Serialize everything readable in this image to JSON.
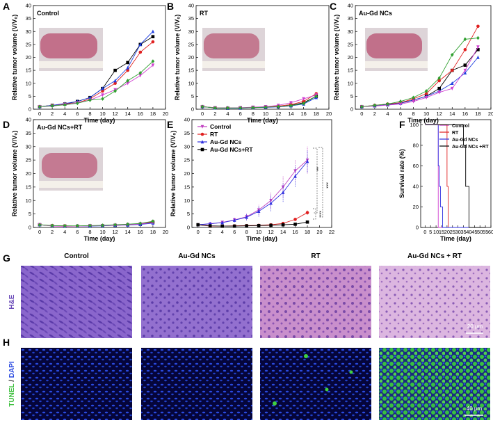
{
  "chart_data": [
    {
      "type": "line",
      "panel": "A",
      "title": "Control",
      "x": [
        0,
        2,
        4,
        6,
        8,
        10,
        12,
        14,
        16,
        18
      ],
      "series": [
        {
          "color": "#000000",
          "marker": "square",
          "values": [
            1,
            1.5,
            2,
            3,
            4.5,
            8,
            15,
            18,
            25,
            28
          ]
        },
        {
          "color": "#e02020",
          "marker": "circle",
          "values": [
            1,
            1.5,
            2,
            2.5,
            4,
            7,
            10,
            15,
            22,
            26
          ]
        },
        {
          "color": "#2040e0",
          "marker": "triangle",
          "values": [
            1,
            1.5,
            2.2,
            3,
            4.5,
            8,
            11,
            16,
            25,
            30
          ]
        },
        {
          "color": "#d040d0",
          "marker": "triangle-down",
          "values": [
            1,
            1.2,
            1.8,
            2.5,
            3.5,
            5.5,
            7.5,
            10,
            13,
            17
          ]
        },
        {
          "color": "#30a030",
          "marker": "diamond",
          "values": [
            1,
            1.3,
            1.7,
            2.3,
            3.5,
            4,
            7,
            11,
            14,
            18.5
          ]
        }
      ],
      "xlim": [
        -1,
        20
      ],
      "ylim": [
        0,
        40
      ],
      "xticks": [
        0,
        2,
        4,
        6,
        8,
        10,
        12,
        14,
        16,
        18,
        20
      ],
      "yticks": [
        0,
        5,
        10,
        15,
        20,
        25,
        30,
        35,
        40
      ],
      "xlabel": "Time (day)",
      "ylabel": "Relative tumor volume (V/V₀)"
    },
    {
      "type": "line",
      "panel": "B",
      "title": "RT",
      "x": [
        0,
        2,
        4,
        6,
        8,
        10,
        12,
        14,
        16,
        18
      ],
      "series": [
        {
          "color": "#000000",
          "marker": "square",
          "values": [
            1,
            0.5,
            0.4,
            0.5,
            0.6,
            0.8,
            1,
            1.5,
            2.5,
            5
          ]
        },
        {
          "color": "#e02020",
          "marker": "circle",
          "values": [
            1,
            0.6,
            0.5,
            0.5,
            0.7,
            0.9,
            1.2,
            1.8,
            3,
            6
          ]
        },
        {
          "color": "#2040e0",
          "marker": "triangle",
          "values": [
            1,
            0.5,
            0.4,
            0.4,
            0.6,
            0.7,
            0.9,
            1.3,
            2,
            4.5
          ]
        },
        {
          "color": "#d040d0",
          "marker": "triangle-down",
          "values": [
            1,
            0.6,
            0.5,
            0.6,
            0.8,
            1,
            1.5,
            2.5,
            4,
            5.5
          ]
        },
        {
          "color": "#30a030",
          "marker": "diamond",
          "values": [
            1,
            0.5,
            0.5,
            0.5,
            0.6,
            0.8,
            1,
            1.4,
            2.2,
            5
          ]
        }
      ],
      "xlim": [
        -1,
        20
      ],
      "ylim": [
        0,
        40
      ],
      "xticks": [
        0,
        2,
        4,
        6,
        8,
        10,
        12,
        14,
        16,
        18,
        20
      ],
      "yticks": [
        0,
        5,
        10,
        15,
        20,
        25,
        30,
        35,
        40
      ],
      "xlabel": "Time (day)",
      "ylabel": "Relative tumor volume (V/V₀)"
    },
    {
      "type": "line",
      "panel": "C",
      "title": "Au-Gd NCs",
      "x": [
        0,
        2,
        4,
        6,
        8,
        10,
        12,
        14,
        16,
        18
      ],
      "series": [
        {
          "color": "#000000",
          "marker": "square",
          "values": [
            1,
            1.3,
            1.8,
            2.5,
            3.5,
            5,
            8,
            15,
            17,
            23
          ]
        },
        {
          "color": "#e02020",
          "marker": "circle",
          "values": [
            1,
            1.5,
            2,
            2.5,
            4,
            6,
            11,
            15,
            23,
            32
          ]
        },
        {
          "color": "#2040e0",
          "marker": "triangle",
          "values": [
            1,
            1.3,
            1.7,
            2.3,
            3.5,
            5,
            7,
            10,
            14,
            20
          ]
        },
        {
          "color": "#d040d0",
          "marker": "triangle-down",
          "values": [
            1,
            1.2,
            1.6,
            2,
            3,
            4.5,
            6.5,
            8,
            15,
            24
          ]
        },
        {
          "color": "#30a030",
          "marker": "diamond",
          "values": [
            1,
            1.5,
            2,
            3,
            4.5,
            7,
            12,
            21,
            27,
            27.5
          ]
        }
      ],
      "xlim": [
        -1,
        20
      ],
      "ylim": [
        0,
        40
      ],
      "xticks": [
        0,
        2,
        4,
        6,
        8,
        10,
        12,
        14,
        16,
        18,
        20
      ],
      "yticks": [
        0,
        5,
        10,
        15,
        20,
        25,
        30,
        35,
        40
      ],
      "xlabel": "Time (day)",
      "ylabel": "Relative tumor volume (V/V₀)"
    },
    {
      "type": "line",
      "panel": "D",
      "title": "Au-Gd NCs+RT",
      "x": [
        0,
        2,
        4,
        6,
        8,
        10,
        12,
        14,
        16,
        18
      ],
      "series": [
        {
          "color": "#000000",
          "marker": "square",
          "values": [
            1,
            0.6,
            0.5,
            0.5,
            0.6,
            0.7,
            0.8,
            1,
            1.2,
            2
          ]
        },
        {
          "color": "#e02020",
          "marker": "circle",
          "values": [
            1,
            0.7,
            0.6,
            0.5,
            0.6,
            0.7,
            0.9,
            1.1,
            1.4,
            2.2
          ]
        },
        {
          "color": "#2040e0",
          "marker": "triangle",
          "values": [
            1,
            0.6,
            0.5,
            0.5,
            0.5,
            0.6,
            0.8,
            0.9,
            1.1,
            1.6
          ]
        },
        {
          "color": "#d040d0",
          "marker": "triangle-down",
          "values": [
            1,
            0.5,
            0.4,
            0.5,
            0.6,
            0.7,
            0.8,
            1,
            1.3,
            1.8
          ]
        },
        {
          "color": "#30a030",
          "marker": "diamond",
          "values": [
            1,
            0.7,
            0.6,
            0.6,
            0.7,
            0.8,
            1,
            1.2,
            1.5,
            2.3
          ]
        }
      ],
      "xlim": [
        -1,
        20
      ],
      "ylim": [
        0,
        40
      ],
      "xticks": [
        0,
        2,
        4,
        6,
        8,
        10,
        12,
        14,
        16,
        18,
        20
      ],
      "yticks": [
        0,
        5,
        10,
        15,
        20,
        25,
        30,
        35,
        40
      ],
      "xlabel": "Time (day)",
      "ylabel": "Relative tumor volume (V/V₀)"
    },
    {
      "type": "line",
      "panel": "E",
      "x": [
        0,
        2,
        4,
        6,
        8,
        10,
        12,
        14,
        16,
        18
      ],
      "series": [
        {
          "name": "Control",
          "color": "#c040c0",
          "marker": "triangle-down",
          "values": [
            1,
            1.3,
            1.9,
            2.8,
            4,
            6.5,
            10,
            15,
            21,
            25
          ],
          "errors": [
            0.2,
            0.3,
            0.5,
            0.8,
            1.2,
            2,
            3,
            4,
            4,
            5
          ]
        },
        {
          "name": "RT",
          "color": "#e02020",
          "marker": "circle",
          "values": [
            1,
            0.5,
            0.5,
            0.6,
            0.7,
            0.8,
            1,
            1.5,
            3,
            5.5
          ],
          "errors": [
            0.1,
            0.1,
            0.1,
            0.1,
            0.2,
            0.2,
            0.3,
            0.4,
            0.6,
            0.8
          ]
        },
        {
          "name": "Au-Gd NCs",
          "color": "#3030e0",
          "marker": "triangle",
          "values": [
            1,
            1.4,
            1.8,
            2.7,
            3.8,
            6,
            9,
            13,
            19,
            24.5
          ],
          "errors": [
            0.2,
            0.3,
            0.5,
            0.8,
            1.2,
            2,
            3,
            3.5,
            4,
            4
          ]
        },
        {
          "name": "Au-Gd NCs+RT",
          "color": "#000000",
          "marker": "square",
          "values": [
            1,
            0.6,
            0.5,
            0.5,
            0.6,
            0.7,
            0.8,
            1,
            1.2,
            2
          ],
          "errors": [
            0.1,
            0.1,
            0.1,
            0.1,
            0.1,
            0.1,
            0.2,
            0.2,
            0.3,
            0.4
          ]
        }
      ],
      "annotations": [
        "**",
        "***",
        "***"
      ],
      "xlim": [
        -1,
        22
      ],
      "ylim": [
        0,
        40
      ],
      "xticks": [
        0,
        2,
        4,
        6,
        8,
        10,
        12,
        14,
        16,
        18,
        20,
        22
      ],
      "yticks": [
        0,
        5,
        10,
        15,
        20,
        25,
        30,
        35,
        40
      ],
      "xlabel": "Time (day)",
      "ylabel": "Relative tumor volume (V/V₀)"
    },
    {
      "type": "line",
      "panel": "F",
      "series": [
        {
          "name": "Control",
          "color": "#d040d0",
          "x": [
            0,
            12,
            12,
            55
          ],
          "values": [
            100,
            100,
            0,
            0
          ]
        },
        {
          "name": "RT",
          "color": "#e02020",
          "x": [
            0,
            20,
            20,
            21,
            21,
            55
          ],
          "values": [
            100,
            100,
            40,
            40,
            0,
            0
          ]
        },
        {
          "name": "Au-Gd NCs",
          "color": "#3030e0",
          "x": [
            0,
            12,
            12,
            13,
            13,
            14,
            14,
            16,
            16,
            55
          ],
          "values": [
            100,
            100,
            60,
            60,
            40,
            40,
            20,
            20,
            0,
            0
          ]
        },
        {
          "name": "Au-Gd NCs +RT",
          "color": "#000000",
          "x": [
            0,
            35,
            35,
            37,
            37,
            40,
            40,
            55
          ],
          "values": [
            100,
            100,
            80,
            80,
            40,
            40,
            0,
            0
          ]
        }
      ],
      "xlim": [
        -4,
        60
      ],
      "ylim": [
        0,
        105
      ],
      "xticks": [
        0,
        5,
        10,
        15,
        20,
        25,
        30,
        35,
        40,
        45,
        50,
        55,
        60
      ],
      "yticks": [
        0,
        20,
        40,
        60,
        80,
        100
      ],
      "xlabel": "Time (day)",
      "ylabel": "Survival rate (%)"
    }
  ],
  "histology": {
    "panel_g": "G",
    "panel_h": "H",
    "columns": [
      "Control",
      "Au-Gd NCs",
      "RT",
      "Au-Gd NCs + RT"
    ],
    "he_label": "H&E",
    "tunel": "TUNEL",
    "slash": "/",
    "dapi": "DAPI",
    "scale_g": "20 μm",
    "scale_h": "40 μm"
  }
}
